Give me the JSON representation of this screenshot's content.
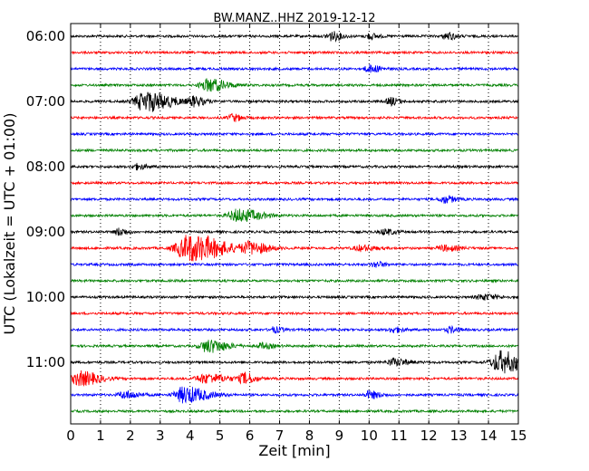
{
  "chart_data": {
    "type": "line",
    "title": "BW.MANZ..HHZ 2019-12-12",
    "xlabel": "Zeit  [min]",
    "ylabel": "UTC (Lokalzeit = UTC + 01:00)",
    "xlim": [
      0,
      15
    ],
    "x_ticks": [
      "0",
      "1",
      "2",
      "3",
      "4",
      "5",
      "6",
      "7",
      "8",
      "9",
      "10",
      "11",
      "12",
      "13",
      "14",
      "15"
    ],
    "y_ticks": [
      {
        "label": "06:00",
        "row": 0
      },
      {
        "label": "07:00",
        "row": 4
      },
      {
        "label": "08:00",
        "row": 8
      },
      {
        "label": "09:00",
        "row": 12
      },
      {
        "label": "10:00",
        "row": 16
      },
      {
        "label": "11:00",
        "row": 20
      }
    ],
    "grid": {
      "x": true,
      "y": false,
      "style": "dotted"
    },
    "trace_colors": [
      "#000000",
      "#ff0000",
      "#0000ff",
      "#008000"
    ],
    "traces": [
      {
        "start": "06:00",
        "bursts": [
          {
            "t": 8.7,
            "a": 5,
            "d": 0.3
          },
          {
            "t": 10.0,
            "a": 3,
            "d": 0.25
          },
          {
            "t": 12.6,
            "a": 4,
            "d": 0.25
          }
        ]
      },
      {
        "start": "06:15",
        "bursts": []
      },
      {
        "start": "06:30",
        "bursts": [
          {
            "t": 10.0,
            "a": 4,
            "d": 0.3
          }
        ]
      },
      {
        "start": "06:45",
        "bursts": [
          {
            "t": 4.6,
            "a": 7,
            "d": 0.5
          }
        ]
      },
      {
        "start": "07:00",
        "bursts": [
          {
            "t": 2.5,
            "a": 11,
            "d": 0.7
          },
          {
            "t": 4.1,
            "a": 5,
            "d": 0.3
          },
          {
            "t": 10.7,
            "a": 4,
            "d": 0.25
          }
        ]
      },
      {
        "start": "07:15",
        "bursts": [
          {
            "t": 5.4,
            "a": 4,
            "d": 0.25
          }
        ]
      },
      {
        "start": "07:30",
        "bursts": []
      },
      {
        "start": "07:45",
        "bursts": []
      },
      {
        "start": "08:00",
        "bursts": [
          {
            "t": 2.2,
            "a": 3,
            "d": 0.25
          }
        ]
      },
      {
        "start": "08:15",
        "bursts": []
      },
      {
        "start": "08:30",
        "bursts": [
          {
            "t": 12.5,
            "a": 4,
            "d": 0.3
          }
        ]
      },
      {
        "start": "08:45",
        "bursts": [
          {
            "t": 5.6,
            "a": 7,
            "d": 0.6
          }
        ]
      },
      {
        "start": "09:00",
        "bursts": [
          {
            "t": 1.6,
            "a": 4,
            "d": 0.25
          },
          {
            "t": 10.5,
            "a": 3,
            "d": 0.3
          }
        ]
      },
      {
        "start": "09:15",
        "bursts": [
          {
            "t": 4.0,
            "a": 15,
            "d": 0.9
          },
          {
            "t": 6.0,
            "a": 6,
            "d": 0.5
          },
          {
            "t": 9.7,
            "a": 3,
            "d": 0.4
          },
          {
            "t": 12.5,
            "a": 3,
            "d": 0.4
          }
        ]
      },
      {
        "start": "09:30",
        "bursts": [
          {
            "t": 10.2,
            "a": 3,
            "d": 0.25
          }
        ]
      },
      {
        "start": "09:45",
        "bursts": []
      },
      {
        "start": "10:00",
        "bursts": [
          {
            "t": 13.8,
            "a": 3,
            "d": 0.4
          }
        ]
      },
      {
        "start": "10:15",
        "bursts": []
      },
      {
        "start": "10:30",
        "bursts": [
          {
            "t": 6.8,
            "a": 3,
            "d": 0.25
          },
          {
            "t": 10.8,
            "a": 3,
            "d": 0.25
          },
          {
            "t": 12.7,
            "a": 3,
            "d": 0.25
          }
        ]
      },
      {
        "start": "10:45",
        "bursts": [
          {
            "t": 4.6,
            "a": 7,
            "d": 0.5
          },
          {
            "t": 6.4,
            "a": 3,
            "d": 0.3
          }
        ]
      },
      {
        "start": "11:00",
        "bursts": [
          {
            "t": 10.8,
            "a": 4,
            "d": 0.4
          },
          {
            "t": 14.4,
            "a": 12,
            "d": 0.6
          }
        ]
      },
      {
        "start": "11:15",
        "bursts": [
          {
            "t": 0.3,
            "a": 8,
            "d": 0.5
          },
          {
            "t": 4.5,
            "a": 5,
            "d": 0.6
          },
          {
            "t": 5.8,
            "a": 6,
            "d": 0.3
          }
        ]
      },
      {
        "start": "11:30",
        "bursts": [
          {
            "t": 1.8,
            "a": 4,
            "d": 0.4
          },
          {
            "t": 3.8,
            "a": 9,
            "d": 0.6
          },
          {
            "t": 10.0,
            "a": 4,
            "d": 0.3
          }
        ]
      },
      {
        "start": "11:45",
        "bursts": []
      }
    ]
  }
}
